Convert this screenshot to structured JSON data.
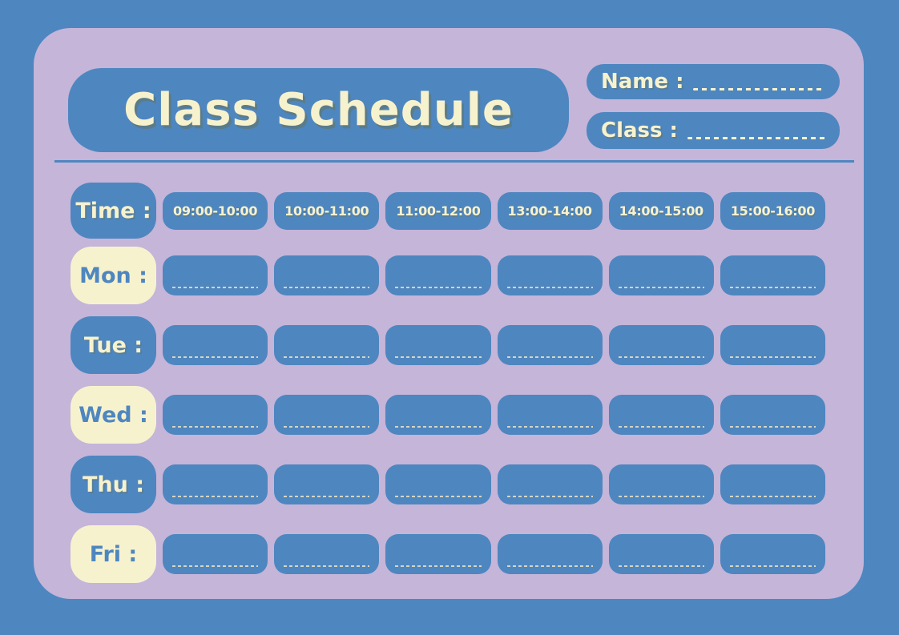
{
  "title": "Class Schedule",
  "fields": {
    "name_label": "Name :",
    "class_label": "Class :"
  },
  "schedule": {
    "time_label": "Time :",
    "time_slots": [
      "09:00-10:00",
      "10:00-11:00",
      "11:00-12:00",
      "13:00-14:00",
      "14:00-15:00",
      "15:00-16:00"
    ],
    "days": [
      {
        "label": "Mon :"
      },
      {
        "label": "Tue :"
      },
      {
        "label": "Wed :"
      },
      {
        "label": "Thu :"
      },
      {
        "label": "Fri :"
      }
    ]
  },
  "colors": {
    "background_blue": "#4e86c0",
    "panel_purple": "#c4b5d9",
    "pill_blue": "#4e86c0",
    "pill_cream": "#f7f2ce",
    "text_cream": "#f7f2ce",
    "text_blue": "#4e86c0"
  }
}
